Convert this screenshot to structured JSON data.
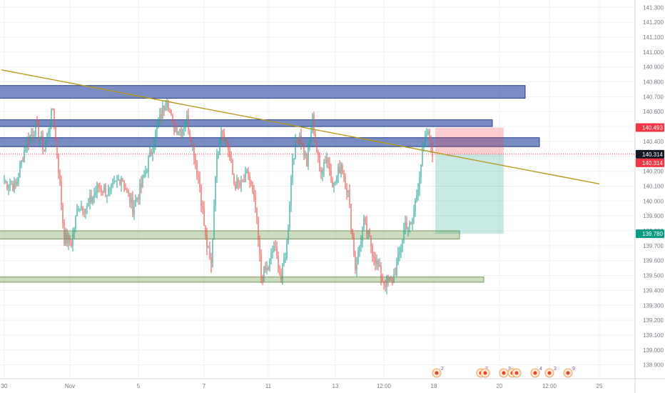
{
  "chart_data": {
    "type": "candlestick",
    "y_axis": {
      "range": [
        138.86,
        141.33
      ],
      "ticks": [
        "138.900",
        "139.000",
        "139.100",
        "139.200",
        "139.300",
        "139.400",
        "139.500",
        "139.600",
        "139.700",
        "139.800",
        "139.900",
        "140.000",
        "140.100",
        "140.200",
        "140.300",
        "140.400",
        "140.500",
        "140.600",
        "140.700",
        "140.800",
        "140.900",
        "141.000",
        "141.100",
        "141.200",
        "141.300"
      ]
    },
    "x_axis": {
      "ticks": [
        {
          "label": "30",
          "i": 0
        },
        {
          "label": "Nov",
          "i": 46
        },
        {
          "label": "5",
          "i": 94
        },
        {
          "label": "7",
          "i": 140
        },
        {
          "label": "11",
          "i": 185
        },
        {
          "label": "13",
          "i": 232
        },
        {
          "label": "12:00",
          "i": 266
        },
        {
          "label": "18",
          "i": 301
        },
        {
          "label": "20",
          "i": 347
        },
        {
          "label": "12:00",
          "i": 382
        },
        {
          "label": "25",
          "i": 417
        }
      ]
    },
    "price_badges": [
      {
        "label": "140.493",
        "value": 140.493,
        "color": "#f23645"
      },
      {
        "label": "140.314",
        "value": 140.314,
        "color": "#131722"
      },
      {
        "label": "140.314",
        "value": 140.314,
        "color": "#f23645"
      },
      {
        "label": "139.780",
        "value": 139.78,
        "color": "#089981"
      }
    ],
    "zones": [
      {
        "kind": "resistance",
        "from_i": -5,
        "to_i": 365,
        "low": 140.69,
        "high": 140.775
      },
      {
        "kind": "resistance",
        "from_i": -5,
        "to_i": 342,
        "low": 140.5,
        "high": 140.545
      },
      {
        "kind": "resistance",
        "from_i": -5,
        "to_i": 375,
        "low": 140.365,
        "high": 140.425
      },
      {
        "kind": "support",
        "from_i": -5,
        "to_i": 319,
        "low": 139.745,
        "high": 139.8
      },
      {
        "kind": "support",
        "from_i": -5,
        "to_i": 336,
        "low": 139.455,
        "high": 139.49
      }
    ],
    "trendline": {
      "i1": -2,
      "p1": 140.88,
      "i2": 417,
      "p2": 140.115,
      "color": "#b59a1c"
    },
    "position": {
      "from_i": 302,
      "to_i": 350,
      "entry": 140.314,
      "stop": 140.493,
      "target": 139.78
    },
    "events": [
      {
        "i": 303,
        "count": "2"
      },
      {
        "i": 334,
        "count": "2"
      },
      {
        "i": 337,
        "count": ""
      },
      {
        "i": 350,
        "count": "3"
      },
      {
        "i": 356,
        "count": ""
      },
      {
        "i": 359,
        "count": ""
      },
      {
        "i": 372,
        "count": "4"
      },
      {
        "i": 382,
        "count": "3"
      },
      {
        "i": 395,
        "count": "9"
      }
    ],
    "colors": {
      "up": "#26a69a",
      "down": "#ef5350",
      "neutral": "#787b86"
    },
    "anchors": [
      {
        "i": 0,
        "p": 140.13
      },
      {
        "i": 8,
        "p": 140.1
      },
      {
        "i": 15,
        "p": 140.38
      },
      {
        "i": 22,
        "p": 140.5
      },
      {
        "i": 28,
        "p": 140.35
      },
      {
        "i": 34,
        "p": 140.62
      },
      {
        "i": 38,
        "p": 140.22
      },
      {
        "i": 42,
        "p": 139.75
      },
      {
        "i": 47,
        "p": 139.72
      },
      {
        "i": 52,
        "p": 139.98
      },
      {
        "i": 58,
        "p": 139.95
      },
      {
        "i": 66,
        "p": 140.1
      },
      {
        "i": 74,
        "p": 140.05
      },
      {
        "i": 82,
        "p": 140.17
      },
      {
        "i": 90,
        "p": 139.95
      },
      {
        "i": 96,
        "p": 140.1
      },
      {
        "i": 102,
        "p": 140.3
      },
      {
        "i": 108,
        "p": 140.52
      },
      {
        "i": 114,
        "p": 140.7
      },
      {
        "i": 118,
        "p": 140.5
      },
      {
        "i": 124,
        "p": 140.48
      },
      {
        "i": 128,
        "p": 140.55
      },
      {
        "i": 133,
        "p": 140.32
      },
      {
        "i": 137,
        "p": 140.1
      },
      {
        "i": 141,
        "p": 139.75
      },
      {
        "i": 145,
        "p": 139.55
      },
      {
        "i": 148,
        "p": 140.2
      },
      {
        "i": 152,
        "p": 140.5
      },
      {
        "i": 157,
        "p": 140.35
      },
      {
        "i": 161,
        "p": 140.12
      },
      {
        "i": 166,
        "p": 140.1
      },
      {
        "i": 171,
        "p": 140.18
      },
      {
        "i": 176,
        "p": 139.95
      },
      {
        "i": 180,
        "p": 139.5
      },
      {
        "i": 185,
        "p": 139.55
      },
      {
        "i": 189,
        "p": 139.7
      },
      {
        "i": 194,
        "p": 139.48
      },
      {
        "i": 198,
        "p": 139.7
      },
      {
        "i": 202,
        "p": 140.3
      },
      {
        "i": 207,
        "p": 140.45
      },
      {
        "i": 212,
        "p": 140.25
      },
      {
        "i": 216,
        "p": 140.55
      },
      {
        "i": 221,
        "p": 140.2
      },
      {
        "i": 226,
        "p": 140.3
      },
      {
        "i": 231,
        "p": 140.1
      },
      {
        "i": 236,
        "p": 140.25
      },
      {
        "i": 241,
        "p": 140.05
      },
      {
        "i": 246,
        "p": 139.55
      },
      {
        "i": 252,
        "p": 139.85
      },
      {
        "i": 257,
        "p": 139.7
      },
      {
        "i": 262,
        "p": 139.55
      },
      {
        "i": 266,
        "p": 139.45
      },
      {
        "i": 272,
        "p": 139.47
      },
      {
        "i": 276,
        "p": 139.6
      },
      {
        "i": 281,
        "p": 139.85
      },
      {
        "i": 285,
        "p": 139.82
      },
      {
        "i": 289,
        "p": 140.05
      },
      {
        "i": 293,
        "p": 140.32
      },
      {
        "i": 296,
        "p": 140.45
      },
      {
        "i": 299,
        "p": 140.4
      },
      {
        "i": 300,
        "p": 140.3
      }
    ]
  }
}
